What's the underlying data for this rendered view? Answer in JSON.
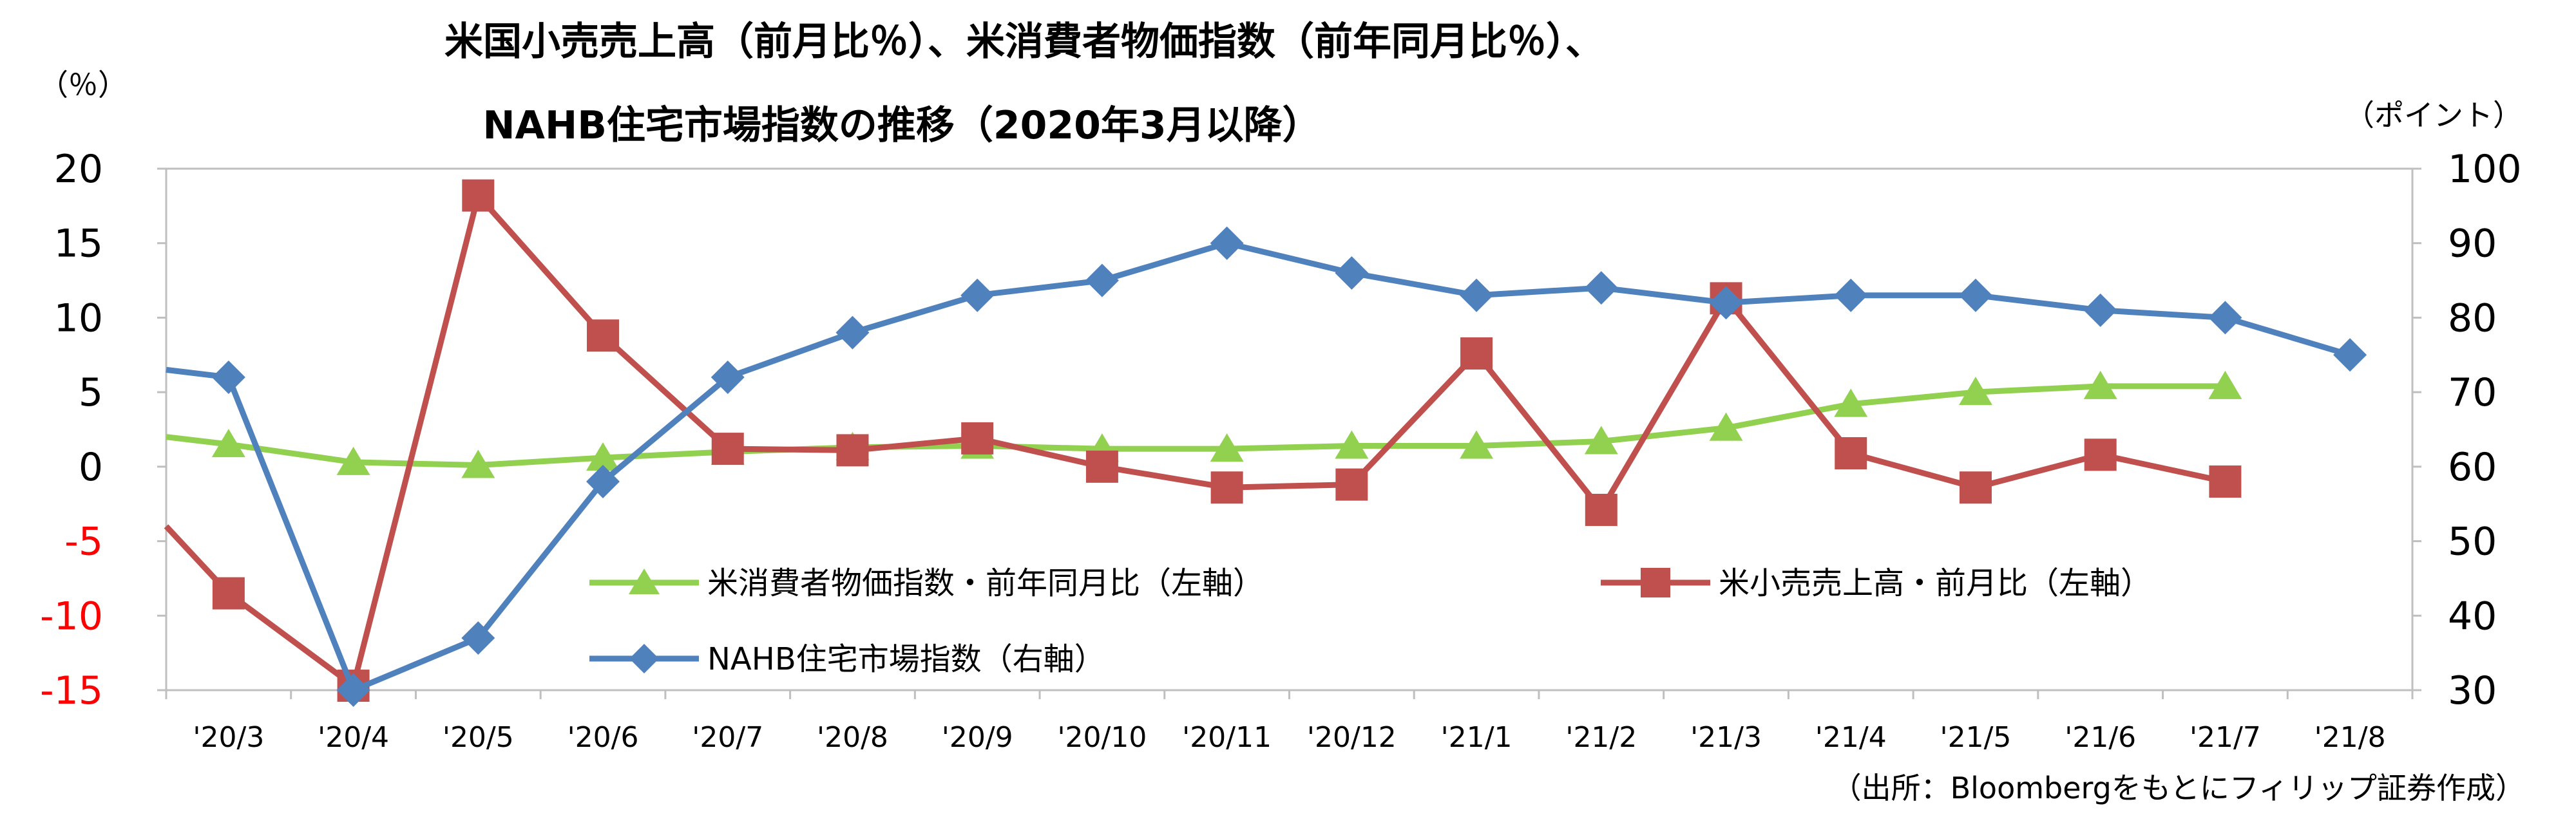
{
  "chart_data": {
    "type": "line",
    "title": "米国小売売上高（前月比％）、米消費者物価指数（前年同月比％）、",
    "subtitle": "NAHB住宅市場指数の推移（2020年3月以降）",
    "left_axis": {
      "unit_label": "（％）",
      "ylim": [
        -15,
        20
      ],
      "ticks": [
        "20",
        "15",
        "10",
        "5",
        "0",
        "-5",
        "-10",
        "-15"
      ],
      "positive_color": "#000000",
      "negative_color": "#ff0000"
    },
    "right_axis": {
      "unit_label": "（ポイント）",
      "ylim": [
        30,
        100
      ],
      "ticks": [
        "100",
        "90",
        "80",
        "70",
        "60",
        "50",
        "40",
        "30"
      ]
    },
    "categories": [
      "'20/3",
      "'20/4",
      "'20/5",
      "'20/6",
      "'20/7",
      "'20/8",
      "'20/9",
      "'20/10",
      "'20/11",
      "'20/12",
      "'21/1",
      "'21/2",
      "'21/3",
      "'21/4",
      "'21/5",
      "'21/6",
      "'21/7",
      "'21/8"
    ],
    "series": [
      {
        "name": "米消費者物価指数・前年同月比（左軸）",
        "axis": "left",
        "color": "#92d050",
        "marker": "triangle",
        "values": [
          1.5,
          0.3,
          0.1,
          0.6,
          1.0,
          1.3,
          1.4,
          1.2,
          1.2,
          1.4,
          1.4,
          1.7,
          2.6,
          4.2,
          5.0,
          5.4,
          5.4,
          null
        ],
        "lead_in": 2.0
      },
      {
        "name": "米小売売上高・前月比（左軸）",
        "axis": "left",
        "color": "#c0504d",
        "marker": "square",
        "values": [
          -8.5,
          -14.7,
          18.2,
          8.8,
          1.2,
          1.1,
          1.9,
          0.0,
          -1.4,
          -1.2,
          7.6,
          -2.9,
          11.3,
          0.9,
          -1.4,
          0.8,
          -1.0,
          null
        ],
        "lead_in": -4.0
      },
      {
        "name": "NAHB住宅市場指数（右軸）",
        "axis": "right",
        "color": "#4f81bd",
        "marker": "diamond",
        "values": [
          72,
          30,
          37,
          58,
          72,
          78,
          83,
          85,
          90,
          86,
          83,
          84,
          82,
          83,
          83,
          81,
          80,
          75
        ],
        "lead_in": 73
      }
    ],
    "legend": "inside-lower-middle",
    "grid": false,
    "source": "（出所：Bloombergをもとにフィリップ証券作成）"
  }
}
